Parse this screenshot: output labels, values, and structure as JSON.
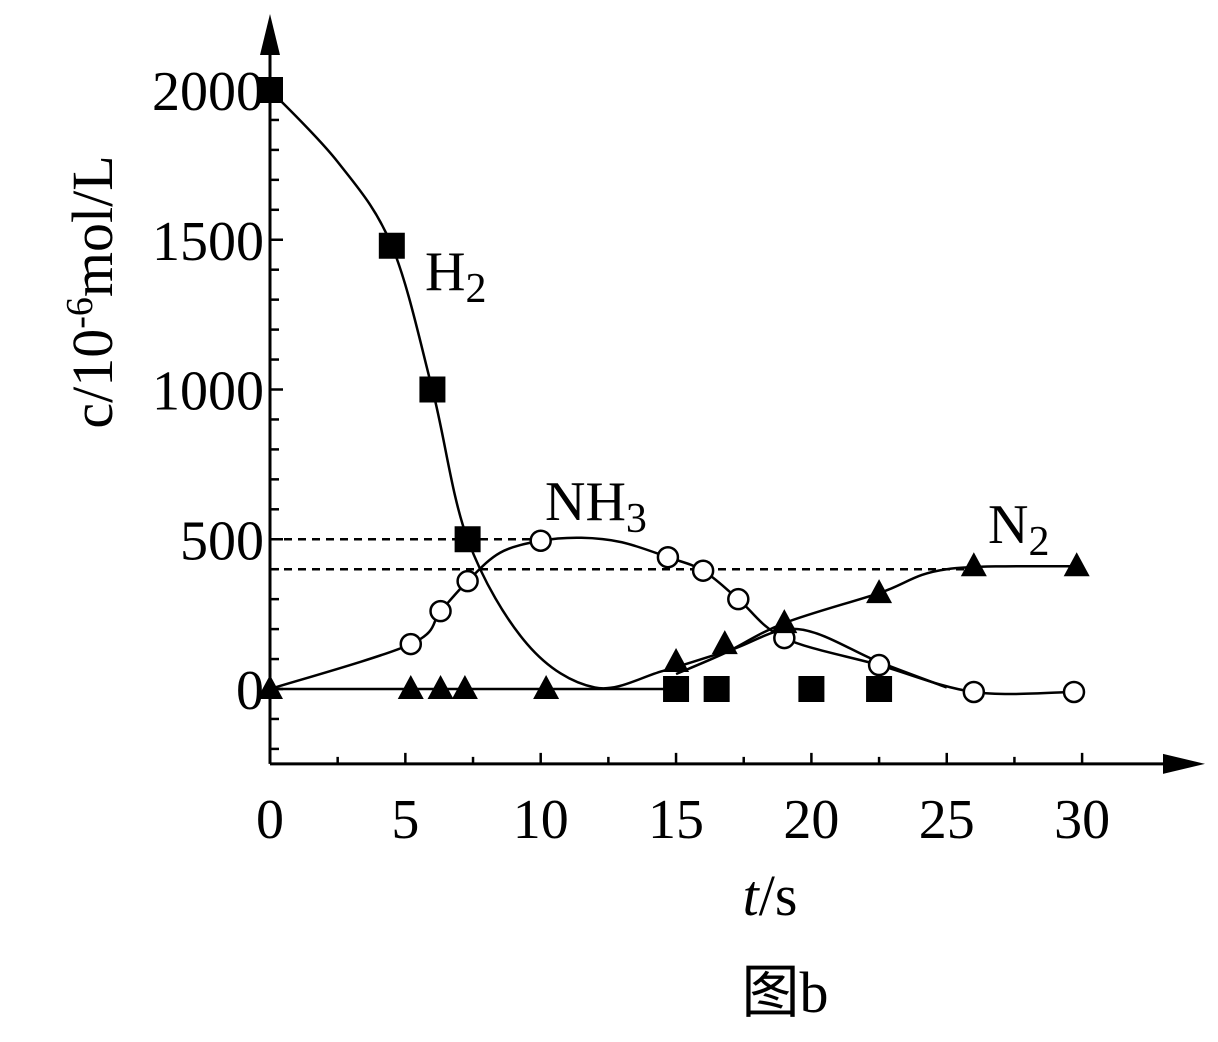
{
  "chart_data": {
    "type": "line",
    "xlabel": {
      "var": "t",
      "unit": "/s"
    },
    "ylabel": {
      "prefix": "c/10",
      "exp": "-6",
      "suffix": "mol/L"
    },
    "caption": "图b",
    "xlim": [
      0,
      30
    ],
    "ylim": [
      -250,
      2200
    ],
    "x_ticks": [
      0,
      5,
      10,
      15,
      20,
      25,
      30
    ],
    "y_ticks": [
      0,
      500,
      1000,
      1500,
      2000
    ],
    "reference_lines": [
      {
        "name": "ref-nh3-max",
        "y": 500,
        "x_from": 0,
        "x_to": 10
      },
      {
        "name": "ref-n2-final",
        "y": 400,
        "x_from": 0,
        "x_to": 26
      }
    ],
    "series": [
      {
        "name": "H₂",
        "label": {
          "main": "H",
          "sub": "2"
        },
        "marker": "square",
        "points": [
          [
            0,
            2000
          ],
          [
            4.5,
            1480
          ],
          [
            6,
            1000
          ],
          [
            7.3,
            500
          ],
          [
            15,
            0
          ],
          [
            16.5,
            0
          ],
          [
            20,
            0
          ],
          [
            22.5,
            0
          ]
        ],
        "curve": [
          [
            0,
            2000
          ],
          [
            2.5,
            1760
          ],
          [
            4.5,
            1480
          ],
          [
            6,
            1000
          ],
          [
            7.3,
            500
          ],
          [
            9.5,
            150
          ],
          [
            12,
            5
          ],
          [
            14.5,
            60
          ],
          [
            17,
            130
          ],
          [
            19.5,
            200
          ],
          [
            22.5,
            90
          ],
          [
            25,
            5
          ]
        ]
      },
      {
        "name": "NH₃",
        "label": {
          "main": "NH",
          "sub": "3"
        },
        "marker": "circle",
        "points": [
          [
            5.2,
            150
          ],
          [
            6.3,
            260
          ],
          [
            7.3,
            360
          ],
          [
            10,
            495
          ],
          [
            14.7,
            440
          ],
          [
            16,
            395
          ],
          [
            17.3,
            300
          ],
          [
            19,
            170
          ],
          [
            22.5,
            80
          ],
          [
            26,
            -10
          ],
          [
            29.7,
            -10
          ]
        ],
        "curve": [
          [
            0,
            0
          ],
          [
            5.2,
            150
          ],
          [
            6.3,
            260
          ],
          [
            7.3,
            360
          ],
          [
            8.5,
            455
          ],
          [
            10,
            495
          ],
          [
            11.5,
            505
          ],
          [
            13,
            490
          ],
          [
            14.7,
            440
          ],
          [
            16,
            395
          ],
          [
            17.3,
            300
          ],
          [
            19,
            170
          ],
          [
            22.5,
            80
          ],
          [
            26,
            -10
          ],
          [
            29.7,
            -10
          ]
        ]
      },
      {
        "name": "N₂",
        "label": {
          "main": "N",
          "sub": "2"
        },
        "marker": "triangle",
        "points": [
          [
            0,
            0
          ],
          [
            5.2,
            0
          ],
          [
            6.3,
            0
          ],
          [
            7.2,
            0
          ],
          [
            10.2,
            0
          ],
          [
            15,
            90
          ],
          [
            16.8,
            150
          ],
          [
            19,
            220
          ],
          [
            22.5,
            320
          ],
          [
            26,
            410
          ],
          [
            29.8,
            410
          ]
        ],
        "curve": [
          [
            0,
            0
          ],
          [
            15,
            0
          ],
          [
            15,
            50
          ],
          [
            16.8,
            120
          ],
          [
            19,
            220
          ],
          [
            22.5,
            320
          ],
          [
            25,
            400
          ],
          [
            29.8,
            410
          ]
        ]
      }
    ]
  }
}
